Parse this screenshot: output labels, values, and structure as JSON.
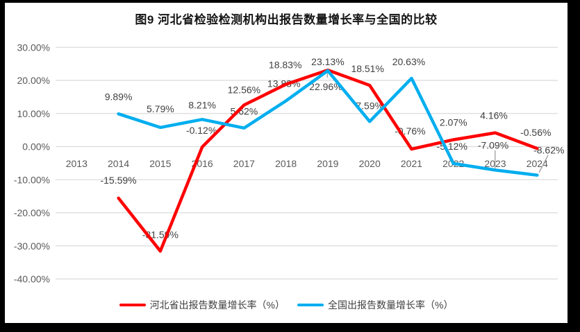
{
  "chart_data": {
    "type": "line",
    "title": "图9 河北省检验检测机构出报告数量增长率与全国的比较",
    "categories": [
      "2013",
      "2014",
      "2015",
      "2016",
      "2017",
      "2018",
      "2019",
      "2020",
      "2021",
      "2022",
      "2023",
      "2024"
    ],
    "series": [
      {
        "name": "河北省出报告数量增长率（%）",
        "color": "#FE0000",
        "values": [
          null,
          -15.59,
          -31.59,
          -0.12,
          12.56,
          18.83,
          23.13,
          18.51,
          -0.76,
          2.07,
          4.16,
          -0.56
        ]
      },
      {
        "name": "全国出报告数量增长率（%）",
        "color": "#00AEEF",
        "values": [
          null,
          9.89,
          5.79,
          8.21,
          5.62,
          13.83,
          22.96,
          7.59,
          20.63,
          -5.12,
          -7.09,
          -8.62
        ]
      }
    ],
    "y_ticks": [
      {
        "value": 30,
        "label": "30.00%"
      },
      {
        "value": 20,
        "label": "20.00%"
      },
      {
        "value": 10,
        "label": "10.00%"
      },
      {
        "value": 0,
        "label": "0.00%"
      },
      {
        "value": -10,
        "label": "-10.00%"
      },
      {
        "value": -20,
        "label": "-20.00%"
      },
      {
        "value": -30,
        "label": "-30.00%"
      },
      {
        "value": -40,
        "label": "-40.00%"
      }
    ],
    "ylim": [
      -40,
      30
    ],
    "grid": true,
    "data_labels": true,
    "label_format": "0.00%",
    "legend_position": "bottom",
    "colors": {
      "gridline": "#DBDBDB",
      "axis_text": "#595959",
      "data_label_text": "#404040",
      "leader_line": "#A6A6A6"
    }
  }
}
